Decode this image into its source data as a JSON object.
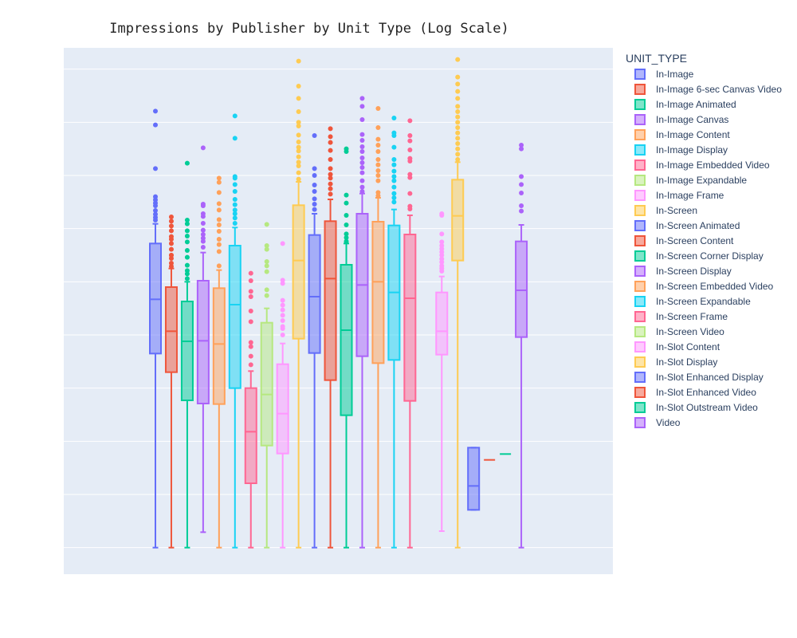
{
  "chart_data": {
    "type": "box",
    "title": "Impressions by Publisher by Unit Type (Log Scale)",
    "xlabel": "",
    "ylabel": "",
    "y_scale": "log",
    "ylim_log10": [
      -0.5,
      9.4
    ],
    "grid": true,
    "legend_title": "UNIT_TYPE",
    "legend_position": "right",
    "series": [
      {
        "name": "In-Image",
        "color": "#636efa",
        "min": 0.0,
        "q1": 3.65,
        "median": 4.67,
        "q3": 5.72,
        "max": 6.09,
        "outliers": [
          7.13,
          7.95,
          8.21,
          6.34,
          6.27,
          6.16,
          6.21,
          6.43,
          6.54,
          6.48,
          6.6
        ]
      },
      {
        "name": "In-Image 6-sec Canvas Video",
        "color": "#ef553b",
        "min": 0.0,
        "q1": 3.3,
        "median": 4.07,
        "q3": 4.9,
        "max": 5.25,
        "outliers": [
          5.29,
          5.35,
          5.44,
          5.5,
          5.5,
          5.61,
          5.72,
          5.8,
          5.85,
          5.96,
          6.05,
          6.14,
          6.22
        ]
      },
      {
        "name": "In-Image Animated",
        "color": "#00cc96",
        "min": 0.0,
        "q1": 2.77,
        "median": 3.88,
        "q3": 4.63,
        "max": 5.0,
        "outliers": [
          5.06,
          5.15,
          5.21,
          5.31,
          5.46,
          5.59,
          5.75,
          5.86,
          5.96,
          6.09,
          6.16,
          7.23
        ]
      },
      {
        "name": "In-Image Canvas",
        "color": "#ab63fa",
        "min": 0.29,
        "q1": 2.71,
        "median": 3.89,
        "q3": 5.02,
        "max": 5.55,
        "outliers": [
          5.65,
          5.76,
          5.82,
          5.89,
          5.97,
          6.1,
          6.23,
          6.28,
          6.43,
          6.46,
          7.52
        ]
      },
      {
        "name": "In-Image Content",
        "color": "#ffa15a",
        "min": 0.0,
        "q1": 2.7,
        "median": 3.83,
        "q3": 4.88,
        "max": 5.22,
        "outliers": [
          5.3,
          5.57,
          5.7,
          5.8,
          5.95,
          6.07,
          6.17,
          6.35,
          6.47,
          6.68,
          6.95,
          6.87
        ]
      },
      {
        "name": "In-Image Display",
        "color": "#19d3f3",
        "min": 0.0,
        "q1": 3.0,
        "median": 4.57,
        "q3": 5.68,
        "max": 6.02,
        "outliers": [
          6.1,
          6.2,
          6.28,
          6.35,
          6.45,
          6.55,
          6.7,
          6.83,
          6.95,
          6.98,
          7.7,
          8.12
        ]
      },
      {
        "name": "In-Image Embedded Video",
        "color": "#ff6692",
        "min": 0.0,
        "q1": 1.21,
        "median": 2.18,
        "q3": 3.0,
        "max": 3.32,
        "outliers": [
          3.44,
          3.6,
          3.78,
          3.86,
          4.25,
          4.45,
          4.72,
          4.82,
          5.02,
          5.16
        ]
      },
      {
        "name": "In-Image Expandable",
        "color": "#b6e880",
        "min": 0.0,
        "q1": 1.92,
        "median": 2.88,
        "q3": 4.23,
        "max": 4.5,
        "outliers": [
          4.74,
          4.85,
          5.19,
          5.3,
          5.38,
          5.61,
          5.68,
          6.08
        ]
      },
      {
        "name": "In-Image Frame",
        "color": "#ff97ff",
        "min": 0.0,
        "q1": 1.77,
        "median": 2.52,
        "q3": 3.45,
        "max": 3.84,
        "outliers": [
          4.0,
          4.12,
          4.16,
          4.27,
          4.37,
          4.47,
          4.56,
          4.65,
          4.97,
          5.03,
          5.72
        ]
      },
      {
        "name": "In-Screen",
        "color": "#fecb52",
        "min": 0.0,
        "q1": 3.93,
        "median": 5.4,
        "q3": 6.44,
        "max": 6.88,
        "outliers": [
          6.93,
          7.05,
          7.18,
          7.25,
          7.35,
          7.46,
          7.53,
          7.63,
          7.76,
          7.93,
          8.0,
          8.2,
          8.45,
          8.68,
          9.15
        ]
      },
      {
        "name": "In-Screen Animated",
        "color": "#636efa",
        "min": 0.0,
        "q1": 3.66,
        "median": 4.72,
        "q3": 5.88,
        "max": 6.28,
        "outliers": [
          6.36,
          6.46,
          6.56,
          6.7,
          6.82,
          7.0,
          7.13,
          7.75
        ]
      },
      {
        "name": "In-Screen Content",
        "color": "#ef553b",
        "min": 0.0,
        "q1": 3.15,
        "median": 5.06,
        "q3": 6.14,
        "max": 6.55,
        "outliers": [
          6.65,
          6.75,
          6.84,
          6.95,
          7.02,
          7.13,
          7.3,
          7.47,
          7.62,
          7.73,
          7.88
        ]
      },
      {
        "name": "In-Screen Corner Display",
        "color": "#00cc96",
        "min": 0.0,
        "q1": 2.49,
        "median": 4.09,
        "q3": 5.32,
        "max": 5.72,
        "outliers": [
          5.76,
          5.83,
          5.9,
          6.07,
          6.25,
          6.48,
          6.63,
          7.45,
          7.5
        ]
      },
      {
        "name": "In-Screen Display",
        "color": "#ab63fa",
        "min": 0.0,
        "q1": 3.6,
        "median": 4.94,
        "q3": 6.28,
        "max": 6.66,
        "outliers": [
          6.7,
          6.78,
          6.9,
          7.05,
          7.15,
          7.24,
          7.33,
          7.45,
          7.54,
          7.66,
          7.77,
          8.05,
          8.3,
          8.45
        ]
      },
      {
        "name": "In-Screen Embedded Video",
        "color": "#ffa15a",
        "min": 0.0,
        "q1": 3.47,
        "median": 5.0,
        "q3": 6.13,
        "max": 6.58,
        "outliers": [
          6.62,
          6.68,
          6.9,
          7.0,
          7.09,
          7.2,
          7.3,
          7.45,
          7.57,
          7.68,
          7.9,
          8.26
        ]
      },
      {
        "name": "In-Screen Expandable",
        "color": "#19d3f3",
        "min": 0.0,
        "q1": 3.53,
        "median": 4.8,
        "q3": 6.06,
        "max": 6.36,
        "outliers": [
          6.5,
          6.58,
          6.66,
          6.78,
          6.9,
          6.98,
          7.08,
          7.2,
          7.3,
          7.53,
          7.75,
          7.8,
          8.08
        ]
      },
      {
        "name": "In-Screen Frame",
        "color": "#ff6692",
        "min": 0.0,
        "q1": 2.76,
        "median": 4.69,
        "q3": 5.89,
        "max": 6.25,
        "outliers": [
          6.37,
          6.42,
          6.66,
          6.96,
          7.02,
          7.27,
          7.32,
          7.48,
          7.65,
          7.75,
          8.03
        ]
      },
      {
        "name": "In-Screen Video",
        "color": "#b6e880",
        "min": null,
        "q1": null,
        "median": null,
        "q3": null,
        "max": null,
        "outliers": []
      },
      {
        "name": "In-Slot Content",
        "color": "#ff97ff",
        "min": 0.31,
        "q1": 3.63,
        "median": 4.07,
        "q3": 4.8,
        "max": 5.1,
        "outliers": [
          5.2,
          5.25,
          5.3,
          5.37,
          5.43,
          5.5,
          5.56,
          5.62,
          5.68,
          5.75,
          5.9,
          6.25,
          6.28
        ]
      },
      {
        "name": "In-Slot Display",
        "color": "#fecb52",
        "min": 0.0,
        "q1": 5.4,
        "median": 6.24,
        "q3": 6.92,
        "max": 7.25,
        "outliers": [
          7.3,
          7.4,
          7.5,
          7.6,
          7.7,
          7.8,
          7.9,
          8.0,
          8.1,
          8.2,
          8.3,
          8.45,
          8.58,
          8.72,
          8.85,
          9.18
        ]
      },
      {
        "name": "In-Slot Enhanced Display",
        "color": "#636efa",
        "min": 0.71,
        "q1": 0.71,
        "median": 1.16,
        "q3": 1.88,
        "max": 1.88,
        "outliers": []
      },
      {
        "name": "In-Slot Enhanced Video",
        "color": "#ef553b",
        "min": 1.65,
        "q1": 1.65,
        "median": 1.65,
        "q3": 1.65,
        "max": 1.65,
        "outliers": []
      },
      {
        "name": "In-Slot Outstream Video",
        "color": "#00cc96",
        "min": 1.76,
        "q1": 1.76,
        "median": 1.76,
        "q3": 1.76,
        "max": 1.76,
        "outliers": []
      },
      {
        "name": "Video",
        "color": "#ab63fa",
        "min": 0.0,
        "q1": 3.96,
        "median": 4.84,
        "q3": 5.76,
        "max": 6.07,
        "outliers": [
          6.33,
          6.43,
          6.67,
          6.83,
          6.98,
          7.5,
          7.57
        ]
      }
    ]
  }
}
